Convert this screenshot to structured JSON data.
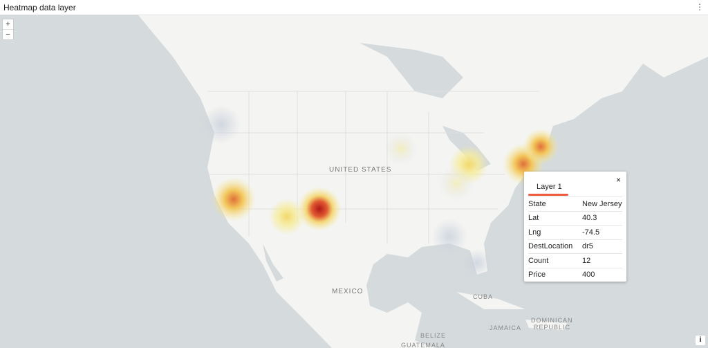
{
  "header": {
    "title": "Heatmap data layer",
    "menu_icon": "vertical-ellipsis-icon"
  },
  "zoom": {
    "in": "+",
    "out": "−"
  },
  "map_labels": {
    "us": "UNITED STATES",
    "mexico": "MEXICO",
    "cuba": "CUBA",
    "belize": "BELIZE",
    "guatemala": "GUATEMALA",
    "jamaica": "JAMAICA",
    "dominican": "DOMINICAN",
    "republic": "REPUBLIC"
  },
  "popup": {
    "tab": "Layer 1",
    "accent": "#ef5a3c",
    "close": "×",
    "rows": [
      {
        "k": "State",
        "v": "New Jersey"
      },
      {
        "k": "Lat",
        "v": "40.3"
      },
      {
        "k": "Lng",
        "v": "-74.5"
      },
      {
        "k": "DestLocation",
        "v": "dr5"
      },
      {
        "k": "Count",
        "v": "12"
      },
      {
        "k": "Price",
        "v": "400"
      }
    ]
  },
  "info": "i",
  "colors": {
    "water": "#d5dadc",
    "land": "#f4f4f2"
  }
}
